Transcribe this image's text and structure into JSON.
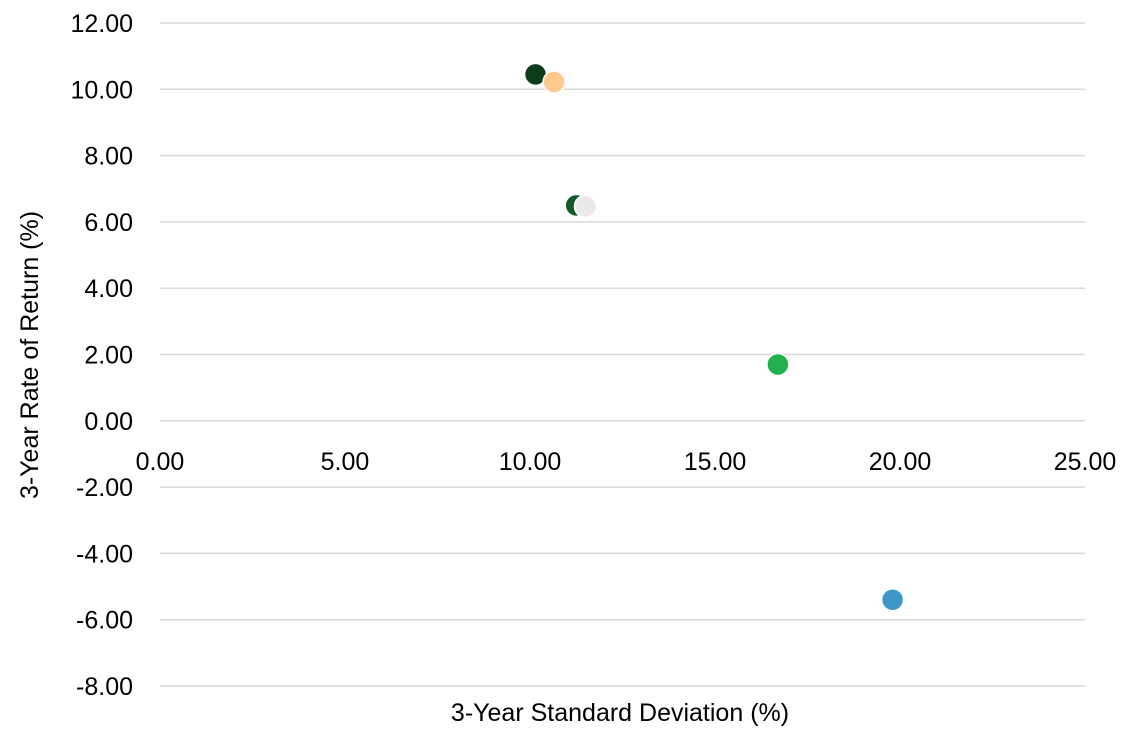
{
  "chart_data": {
    "type": "scatter",
    "title": "",
    "xlabel": "3-Year Standard Deviation (%)",
    "ylabel": "3-Year Rate of Return (%)",
    "xlim": [
      0,
      25
    ],
    "ylim": [
      -8,
      12
    ],
    "x_ticks": [
      "0.00",
      "5.00",
      "10.00",
      "15.00",
      "20.00",
      "25.00"
    ],
    "y_ticks": [
      "12.00",
      "10.00",
      "8.00",
      "6.00",
      "4.00",
      "2.00",
      "0.00",
      "-2.00",
      "-4.00",
      "-6.00",
      "-8.00"
    ],
    "grid": "horizontal",
    "legend": "none",
    "points": [
      {
        "x": 10.15,
        "y": 10.45,
        "color": "#0b3d1c"
      },
      {
        "x": 10.65,
        "y": 10.22,
        "color": "#fdc98e"
      },
      {
        "x": 11.25,
        "y": 6.5,
        "color": "#0f5a28"
      },
      {
        "x": 11.5,
        "y": 6.47,
        "color": "#e9e9e9"
      },
      {
        "x": 16.7,
        "y": 1.7,
        "color": "#22b14c"
      },
      {
        "x": 19.8,
        "y": -5.4,
        "color": "#3d98c9"
      }
    ]
  }
}
